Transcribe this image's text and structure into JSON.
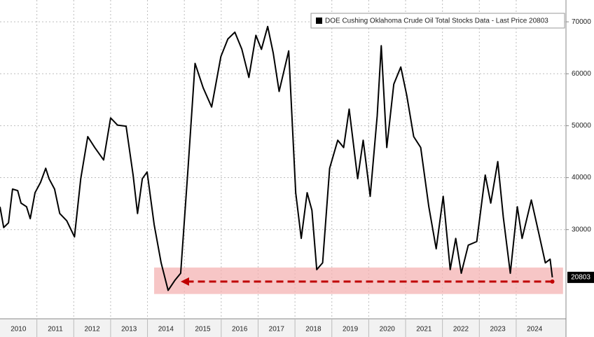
{
  "chart_data": {
    "type": "line",
    "legend": "DOE Cushing Oklahoma Crude Oil Total Stocks Data - Last Price 20803",
    "last_price_label": "20803",
    "xlim": [
      2010,
      2025.35
    ],
    "ylim": [
      13100,
      74200
    ],
    "yticks": [
      30000,
      40000,
      50000,
      60000,
      70000
    ],
    "years": [
      2010,
      2011,
      2012,
      2013,
      2014,
      2015,
      2016,
      2017,
      2018,
      2019,
      2020,
      2021,
      2022,
      2023,
      2024
    ],
    "grid": true,
    "highlight_range": {
      "x": [
        2014.18,
        2025.27
      ],
      "y": [
        17600,
        22700
      ],
      "color": "#f4b3b3"
    },
    "arrow": {
      "from_x": 2024.98,
      "to_x": 2014.9,
      "y": 20000,
      "color": "#c00000"
    },
    "series": [
      {
        "name": "DOE Cushing Oklahoma Crude Oil Total Stocks Data",
        "color": "#000000",
        "x": [
          2010.0,
          2010.1,
          2010.23,
          2010.34,
          2010.48,
          2010.57,
          2010.72,
          2010.82,
          2010.95,
          2011.1,
          2011.24,
          2011.33,
          2011.48,
          2011.62,
          2011.81,
          2012.02,
          2012.19,
          2012.38,
          2012.57,
          2012.81,
          2013.0,
          2013.19,
          2013.42,
          2013.61,
          2013.73,
          2013.86,
          2013.99,
          2014.18,
          2014.37,
          2014.56,
          2014.75,
          2014.9,
          2015.1,
          2015.29,
          2015.51,
          2015.74,
          2015.99,
          2016.18,
          2016.37,
          2016.56,
          2016.75,
          2016.94,
          2017.09,
          2017.26,
          2017.41,
          2017.57,
          2017.83,
          2018.02,
          2018.17,
          2018.33,
          2018.46,
          2018.59,
          2018.75,
          2018.94,
          2019.16,
          2019.32,
          2019.47,
          2019.7,
          2019.85,
          2020.04,
          2020.23,
          2020.34,
          2020.49,
          2020.68,
          2020.87,
          2021.03,
          2021.22,
          2021.41,
          2021.63,
          2021.83,
          2022.02,
          2022.21,
          2022.36,
          2022.51,
          2022.7,
          2022.93,
          2023.16,
          2023.31,
          2023.5,
          2023.65,
          2023.84,
          2024.03,
          2024.16,
          2024.41,
          2024.6,
          2024.79,
          2024.92,
          2024.98
        ],
        "values": [
          34400,
          30400,
          31300,
          37800,
          37500,
          35100,
          34400,
          32100,
          37100,
          39100,
          41800,
          39800,
          37800,
          33100,
          31700,
          28600,
          39800,
          47900,
          45800,
          43400,
          51500,
          50100,
          49900,
          40500,
          33100,
          39800,
          41100,
          31000,
          23600,
          18300,
          20300,
          21600,
          41800,
          62000,
          57300,
          53600,
          63300,
          66700,
          68000,
          64700,
          59300,
          67400,
          64700,
          69100,
          64000,
          56600,
          64400,
          37100,
          28300,
          37100,
          33700,
          22300,
          23600,
          41800,
          47200,
          45800,
          53200,
          39800,
          47200,
          36400,
          51900,
          65400,
          45800,
          58000,
          61300,
          55900,
          47900,
          45800,
          34400,
          26300,
          36400,
          22300,
          28300,
          21600,
          27000,
          27700,
          40500,
          35100,
          43100,
          32400,
          21600,
          34400,
          28300,
          35700,
          29700,
          23600,
          24300,
          20803
        ]
      }
    ]
  }
}
